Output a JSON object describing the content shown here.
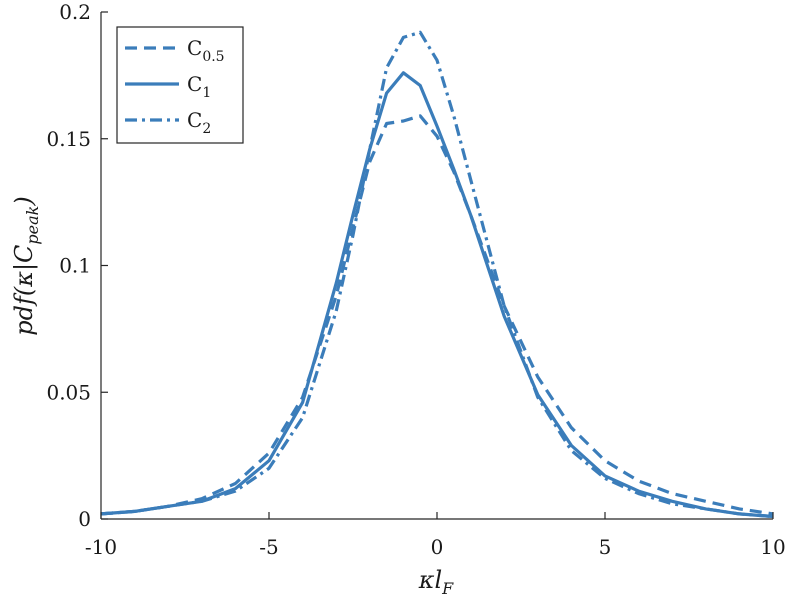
{
  "chart_data": {
    "type": "line",
    "xlabel": "κl_F",
    "ylabel": "pdf(κ|C_peak)",
    "xlim": [
      -10,
      10
    ],
    "ylim": [
      0,
      0.2
    ],
    "xticks": [
      -10,
      -5,
      0,
      5,
      10
    ],
    "xtick_labels": [
      "-10",
      "-5",
      "0",
      "5",
      "10"
    ],
    "yticks": [
      0,
      0.05,
      0.1,
      0.15,
      0.2
    ],
    "ytick_labels": [
      "0",
      "0.05",
      "0.1",
      "0.15",
      "0.2"
    ],
    "grid": false,
    "legend_placement": "top-left",
    "color": "#3b7dba",
    "series": [
      {
        "name": "C_0.5",
        "legend_main": "C",
        "legend_sub": "0.5",
        "dash": "dashed",
        "x": [
          -10,
          -9,
          -8,
          -7,
          -6,
          -5,
          -4,
          -3,
          -2.5,
          -2,
          -1.5,
          -1,
          -0.5,
          0,
          0.5,
          1,
          2,
          3,
          4,
          5,
          6,
          7,
          8,
          9,
          10
        ],
        "y": [
          0.002,
          0.003,
          0.005,
          0.008,
          0.014,
          0.026,
          0.048,
          0.088,
          0.115,
          0.141,
          0.156,
          0.157,
          0.159,
          0.151,
          0.137,
          0.12,
          0.084,
          0.056,
          0.036,
          0.023,
          0.015,
          0.01,
          0.007,
          0.004,
          0.002
        ]
      },
      {
        "name": "C_1",
        "legend_main": "C",
        "legend_sub": "1",
        "dash": "solid",
        "x": [
          -10,
          -9,
          -8,
          -7,
          -6,
          -5,
          -4,
          -3,
          -2.5,
          -2,
          -1.5,
          -1,
          -0.5,
          0,
          0.5,
          1,
          2,
          3,
          4,
          5,
          6,
          7,
          8,
          9,
          10
        ],
        "y": [
          0.002,
          0.003,
          0.005,
          0.007,
          0.012,
          0.023,
          0.046,
          0.093,
          0.12,
          0.146,
          0.168,
          0.176,
          0.171,
          0.155,
          0.138,
          0.12,
          0.08,
          0.049,
          0.029,
          0.017,
          0.011,
          0.007,
          0.004,
          0.002,
          0.001
        ]
      },
      {
        "name": "C_2",
        "legend_main": "C",
        "legend_sub": "2",
        "dash": "dashdot",
        "x": [
          -10,
          -9,
          -8,
          -7,
          -6,
          -5,
          -4,
          -3,
          -2.5,
          -2,
          -1.5,
          -1,
          -0.5,
          0,
          0.5,
          1,
          2,
          3,
          4,
          5,
          6,
          7,
          8,
          9,
          10
        ],
        "y": [
          0.002,
          0.003,
          0.005,
          0.007,
          0.011,
          0.02,
          0.04,
          0.082,
          0.112,
          0.146,
          0.178,
          0.19,
          0.192,
          0.181,
          0.159,
          0.134,
          0.084,
          0.048,
          0.027,
          0.016,
          0.01,
          0.006,
          0.004,
          0.002,
          0.001
        ]
      }
    ]
  }
}
